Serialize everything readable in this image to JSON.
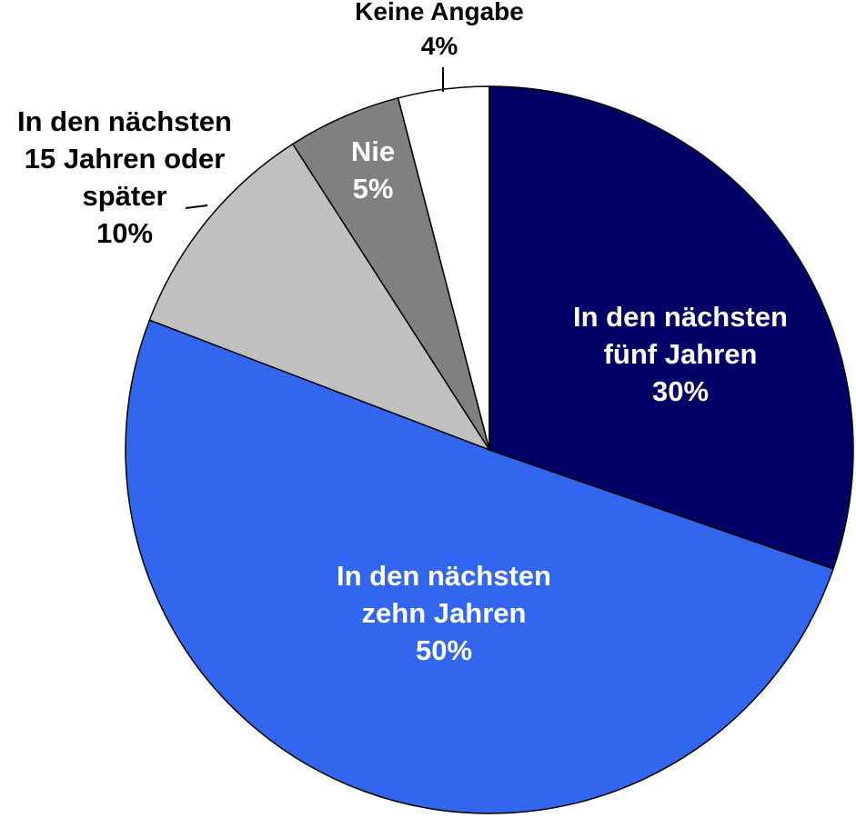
{
  "chart_data": {
    "type": "pie",
    "categories": [
      "In den nächsten\nfünf Jahren",
      "In den nächsten\nzehn Jahren",
      "In den nächsten\n15 Jahren oder\nspäter",
      "Nie",
      "Keine Angabe"
    ],
    "values": [
      30,
      50,
      10,
      5,
      4
    ],
    "value_labels": [
      "30%",
      "50%",
      "10%",
      "5%",
      "4%"
    ],
    "colors": [
      "#000066",
      "#3366ee",
      "#c0c0c0",
      "#808080",
      "#ffffff"
    ]
  }
}
